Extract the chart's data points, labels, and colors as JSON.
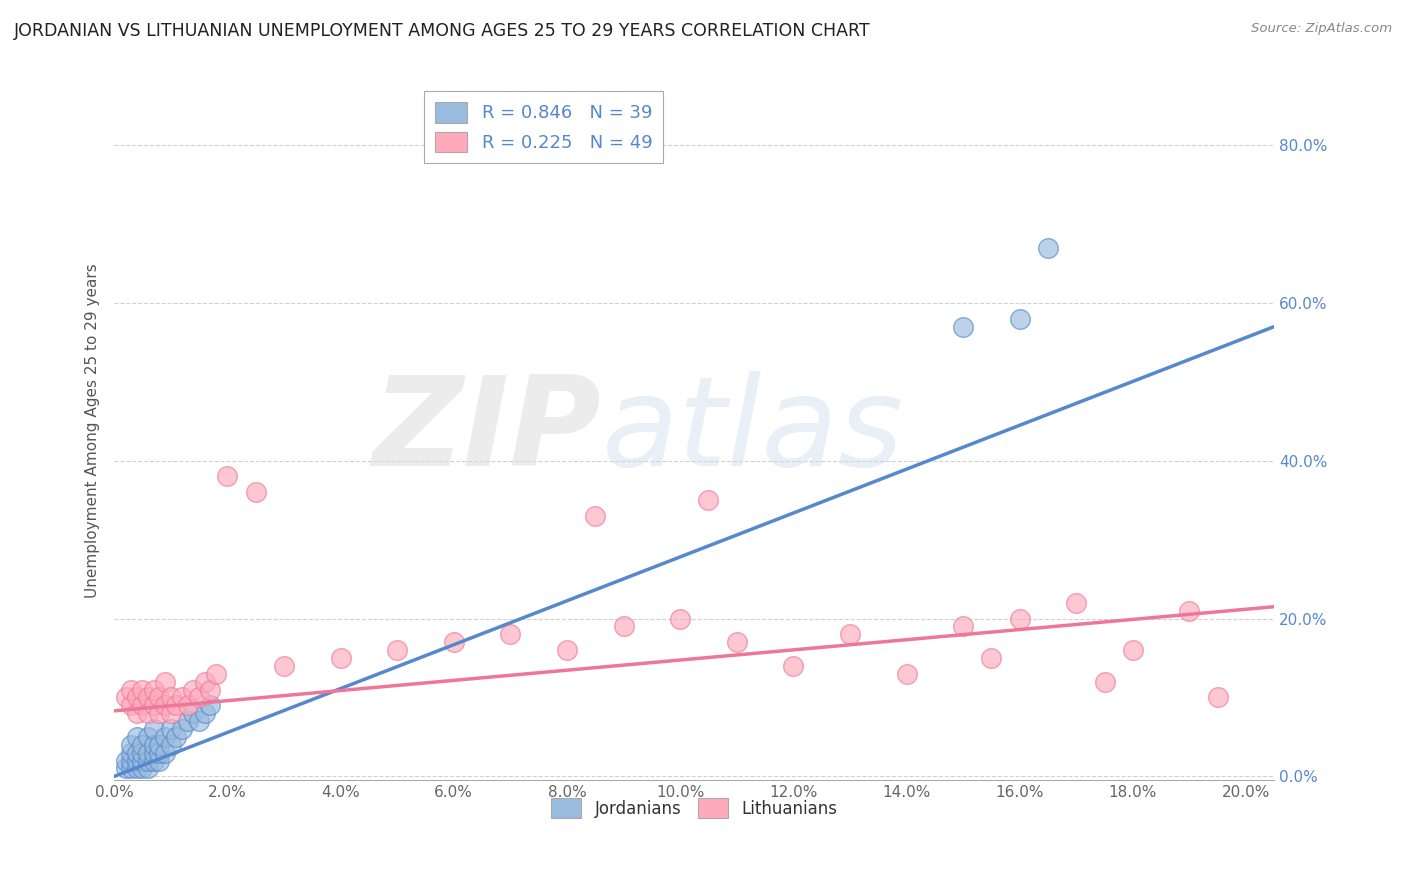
{
  "title": "JORDANIAN VS LITHUANIAN UNEMPLOYMENT AMONG AGES 25 TO 29 YEARS CORRELATION CHART",
  "source": "Source: ZipAtlas.com",
  "xlabel_ticks": [
    "0.0%",
    "2.0%",
    "4.0%",
    "6.0%",
    "8.0%",
    "10.0%",
    "12.0%",
    "14.0%",
    "16.0%",
    "18.0%",
    "20.0%"
  ],
  "ylabel_ticks": [
    "0.0%",
    "20.0%",
    "40.0%",
    "60.0%",
    "80.0%"
  ],
  "xlim": [
    0.0,
    0.205
  ],
  "ylim": [
    -0.005,
    0.88
  ],
  "ylabel": "Unemployment Among Ages 25 to 29 years",
  "legend_blue_label": "R = 0.846   N = 39",
  "legend_pink_label": "R = 0.225   N = 49",
  "legend_label_jordanians": "Jordanians",
  "legend_label_lithuanians": "Lithuanians",
  "blue_color": "#99BBDD",
  "pink_color": "#FFAABB",
  "blue_line_color": "#5588CC",
  "pink_line_color": "#EE7799",
  "watermark_zip": "ZIP",
  "watermark_atlas": "atlas",
  "blue_scatter_x": [
    0.002,
    0.002,
    0.003,
    0.003,
    0.003,
    0.003,
    0.004,
    0.004,
    0.004,
    0.004,
    0.005,
    0.005,
    0.005,
    0.005,
    0.006,
    0.006,
    0.006,
    0.006,
    0.007,
    0.007,
    0.007,
    0.007,
    0.008,
    0.008,
    0.008,
    0.009,
    0.009,
    0.01,
    0.01,
    0.011,
    0.012,
    0.013,
    0.014,
    0.015,
    0.016,
    0.017,
    0.15,
    0.16,
    0.165
  ],
  "blue_scatter_y": [
    0.01,
    0.02,
    0.01,
    0.02,
    0.03,
    0.04,
    0.01,
    0.02,
    0.03,
    0.05,
    0.01,
    0.02,
    0.03,
    0.04,
    0.01,
    0.02,
    0.03,
    0.05,
    0.02,
    0.03,
    0.04,
    0.06,
    0.02,
    0.03,
    0.04,
    0.03,
    0.05,
    0.04,
    0.06,
    0.05,
    0.06,
    0.07,
    0.08,
    0.07,
    0.08,
    0.09,
    0.57,
    0.58,
    0.67
  ],
  "pink_scatter_x": [
    0.002,
    0.003,
    0.003,
    0.004,
    0.004,
    0.005,
    0.005,
    0.006,
    0.006,
    0.007,
    0.007,
    0.008,
    0.008,
    0.009,
    0.009,
    0.01,
    0.01,
    0.011,
    0.012,
    0.013,
    0.014,
    0.015,
    0.016,
    0.017,
    0.018,
    0.02,
    0.025,
    0.03,
    0.04,
    0.05,
    0.06,
    0.07,
    0.08,
    0.085,
    0.09,
    0.1,
    0.105,
    0.11,
    0.12,
    0.13,
    0.14,
    0.15,
    0.155,
    0.16,
    0.17,
    0.175,
    0.18,
    0.19,
    0.195
  ],
  "pink_scatter_y": [
    0.1,
    0.09,
    0.11,
    0.08,
    0.1,
    0.09,
    0.11,
    0.08,
    0.1,
    0.09,
    0.11,
    0.08,
    0.1,
    0.09,
    0.12,
    0.08,
    0.1,
    0.09,
    0.1,
    0.09,
    0.11,
    0.1,
    0.12,
    0.11,
    0.13,
    0.38,
    0.36,
    0.14,
    0.15,
    0.16,
    0.17,
    0.18,
    0.16,
    0.33,
    0.19,
    0.2,
    0.35,
    0.17,
    0.14,
    0.18,
    0.13,
    0.19,
    0.15,
    0.2,
    0.22,
    0.12,
    0.16,
    0.21,
    0.1
  ],
  "blue_regline_x": [
    0.0,
    0.205
  ],
  "blue_regline_y": [
    0.0,
    0.57
  ],
  "pink_regline_x": [
    0.0,
    0.205
  ],
  "pink_regline_y": [
    0.083,
    0.215
  ],
  "title_fontsize": 12.5,
  "axis_tick_fontsize": 11,
  "ylabel_fontsize": 11,
  "background_color": "#FFFFFF",
  "grid_color": "#CCCCCC"
}
